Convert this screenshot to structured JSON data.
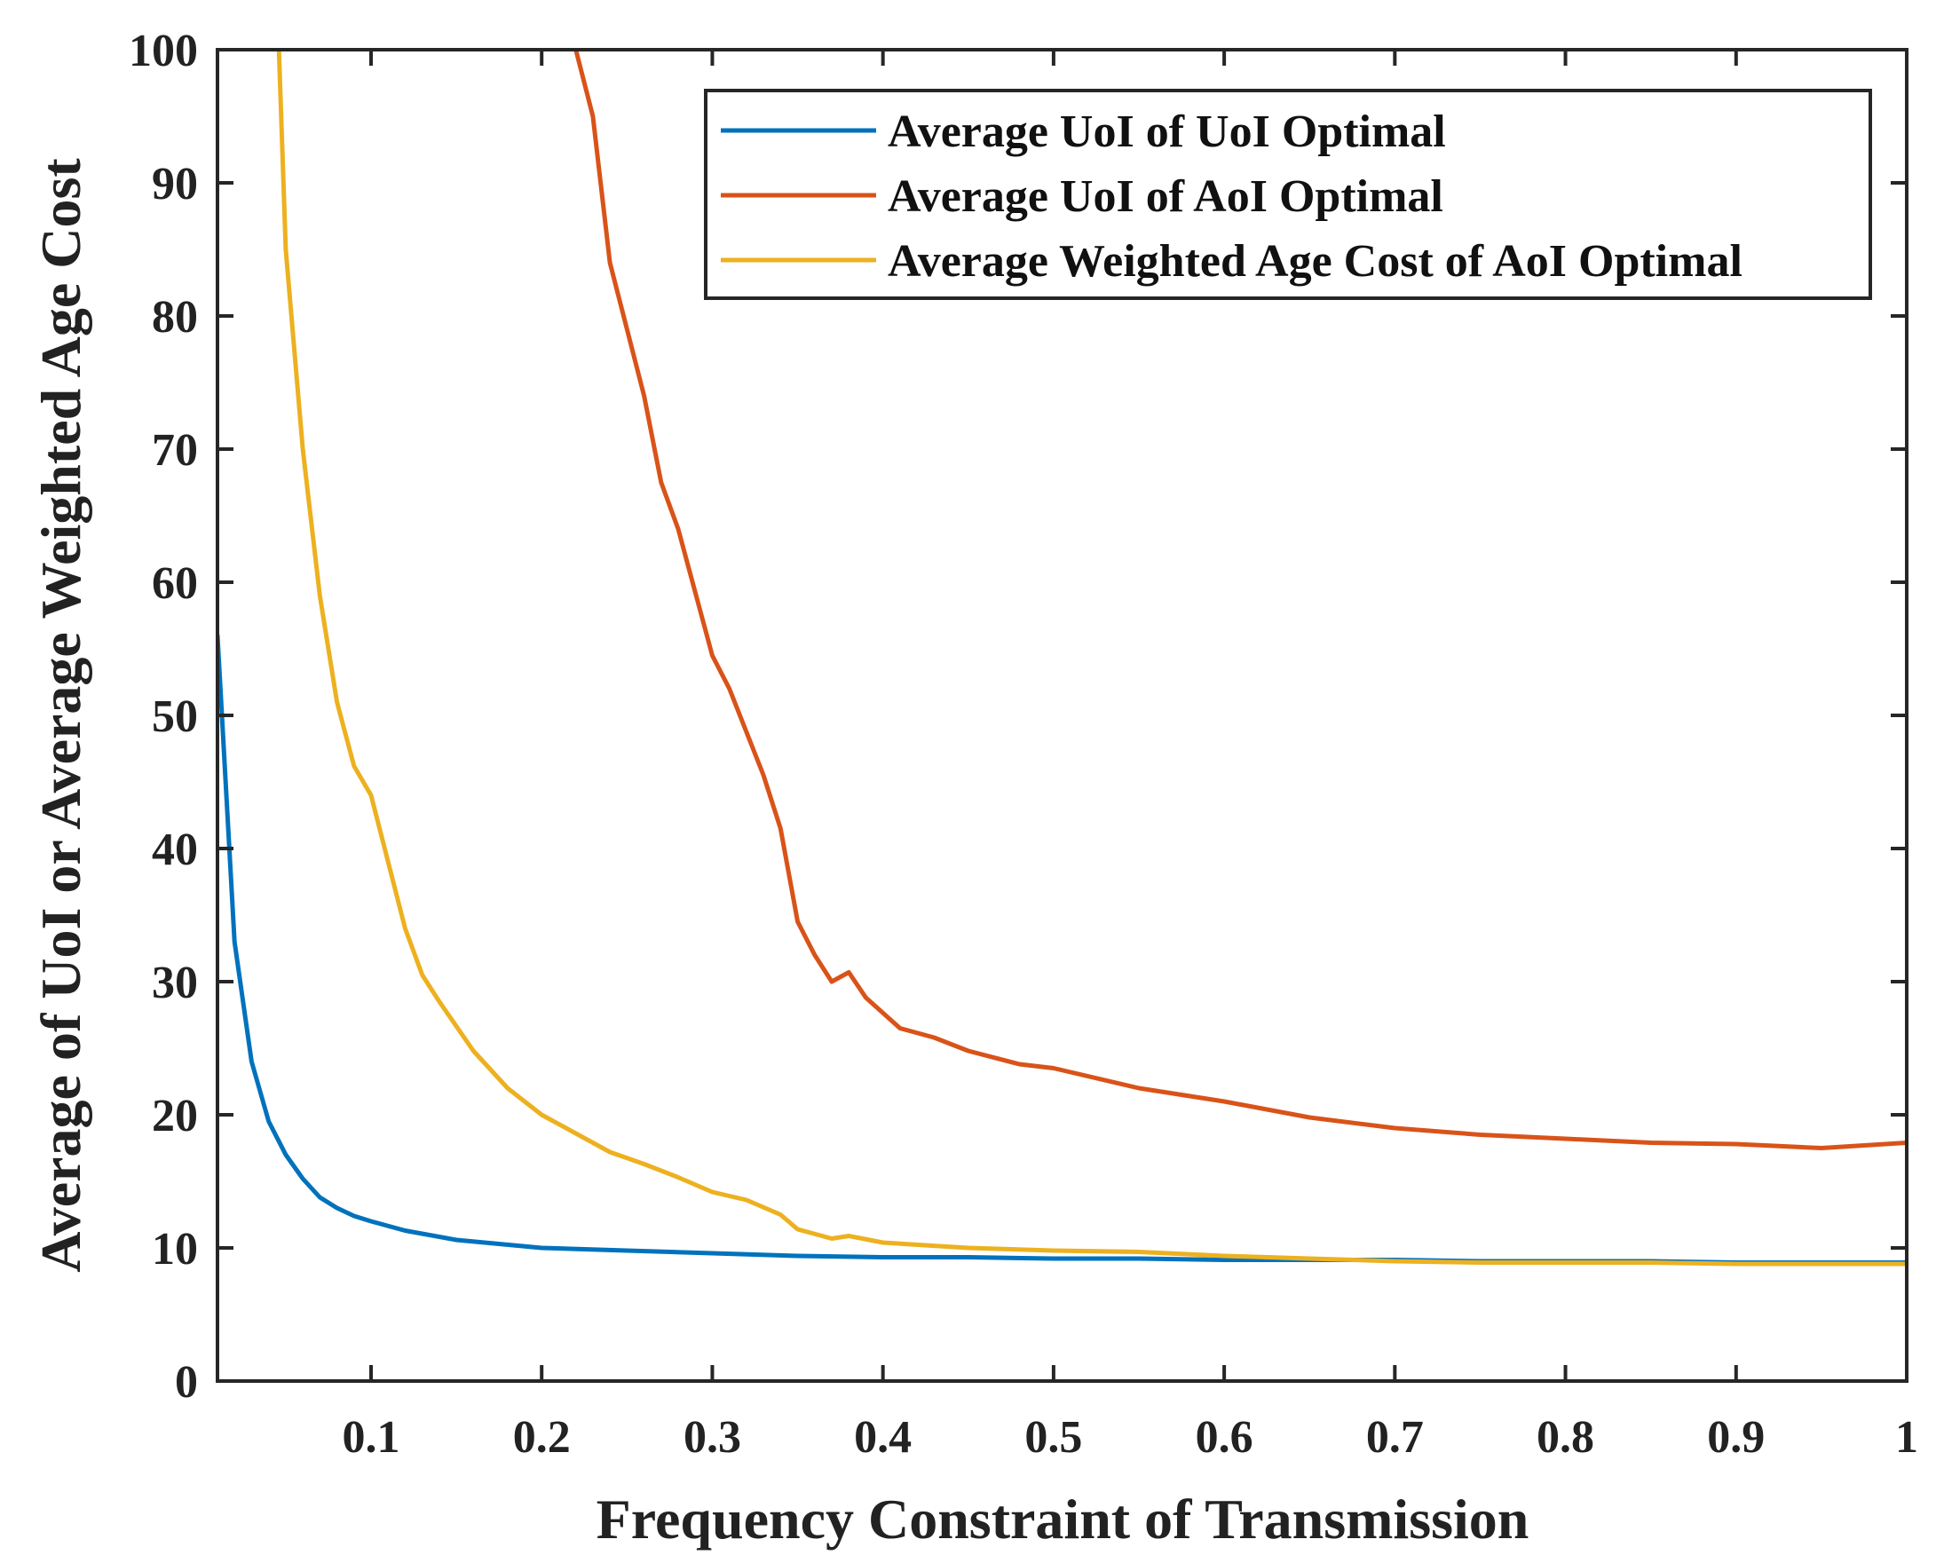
{
  "chart_data": {
    "type": "line",
    "title": "",
    "xlabel": "Frequency Constraint of Transmission",
    "ylabel": "Average of UoI or Average Weighted Age Cost",
    "xlim": [
      0.01,
      1
    ],
    "ylim": [
      0,
      100
    ],
    "xticks": [
      0.1,
      0.2,
      0.3,
      0.4,
      0.5,
      0.6,
      0.7,
      0.8,
      0.9,
      1
    ],
    "xtick_labels": [
      "0.1",
      "0.2",
      "0.3",
      "0.4",
      "0.5",
      "0.6",
      "0.7",
      "0.8",
      "0.9",
      "1"
    ],
    "yticks": [
      0,
      10,
      20,
      30,
      40,
      50,
      60,
      70,
      80,
      90,
      100
    ],
    "ytick_labels": [
      "0",
      "10",
      "20",
      "30",
      "40",
      "50",
      "60",
      "70",
      "80",
      "90",
      "100"
    ],
    "grid": false,
    "legend_position": "top-right",
    "series": [
      {
        "name": "Average UoI of UoI Optimal",
        "color": "#0072BD",
        "x": [
          0.01,
          0.02,
          0.03,
          0.04,
          0.05,
          0.06,
          0.07,
          0.08,
          0.09,
          0.1,
          0.12,
          0.15,
          0.2,
          0.25,
          0.3,
          0.35,
          0.4,
          0.45,
          0.5,
          0.55,
          0.6,
          0.65,
          0.7,
          0.75,
          0.8,
          0.85,
          0.9,
          0.95,
          1.0
        ],
        "values": [
          56,
          33,
          24,
          19.5,
          17,
          15.2,
          13.8,
          13,
          12.4,
          12,
          11.3,
          10.6,
          10,
          9.8,
          9.6,
          9.4,
          9.3,
          9.3,
          9.2,
          9.2,
          9.1,
          9.1,
          9.1,
          9.0,
          9.0,
          9.0,
          8.9,
          8.9,
          8.9
        ]
      },
      {
        "name": "Average UoI of AoI Optimal",
        "color": "#D95319",
        "x": [
          0.22,
          0.23,
          0.24,
          0.26,
          0.27,
          0.28,
          0.3,
          0.31,
          0.33,
          0.34,
          0.35,
          0.36,
          0.37,
          0.38,
          0.39,
          0.41,
          0.43,
          0.45,
          0.48,
          0.5,
          0.55,
          0.6,
          0.65,
          0.7,
          0.75,
          0.8,
          0.85,
          0.9,
          0.95,
          1.0
        ],
        "values": [
          100,
          95,
          84,
          74,
          67.5,
          64,
          54.5,
          52,
          45.5,
          41.5,
          34.5,
          32,
          30,
          30.7,
          28.8,
          26.5,
          25.8,
          24.8,
          23.8,
          23.5,
          22,
          21,
          19.8,
          19,
          18.5,
          18.2,
          17.9,
          17.8,
          17.5,
          17.9
        ]
      },
      {
        "name": "Average Weighted Age Cost of AoI Optimal",
        "color": "#EDB120",
        "x": [
          0.046,
          0.05,
          0.06,
          0.07,
          0.08,
          0.09,
          0.1,
          0.11,
          0.12,
          0.13,
          0.14,
          0.16,
          0.18,
          0.2,
          0.22,
          0.24,
          0.26,
          0.28,
          0.3,
          0.32,
          0.34,
          0.35,
          0.37,
          0.38,
          0.4,
          0.45,
          0.5,
          0.55,
          0.6,
          0.65,
          0.7,
          0.75,
          0.8,
          0.85,
          0.9,
          0.95,
          1.0
        ],
        "values": [
          100,
          85,
          70,
          59,
          51,
          46.2,
          44,
          39,
          34,
          30.5,
          28.5,
          24.8,
          22,
          20,
          18.6,
          17.2,
          16.3,
          15.3,
          14.2,
          13.6,
          12.5,
          11.4,
          10.7,
          10.9,
          10.4,
          10,
          9.8,
          9.7,
          9.4,
          9.2,
          9.0,
          8.9,
          8.9,
          8.9,
          8.8,
          8.8,
          8.8
        ]
      }
    ]
  }
}
